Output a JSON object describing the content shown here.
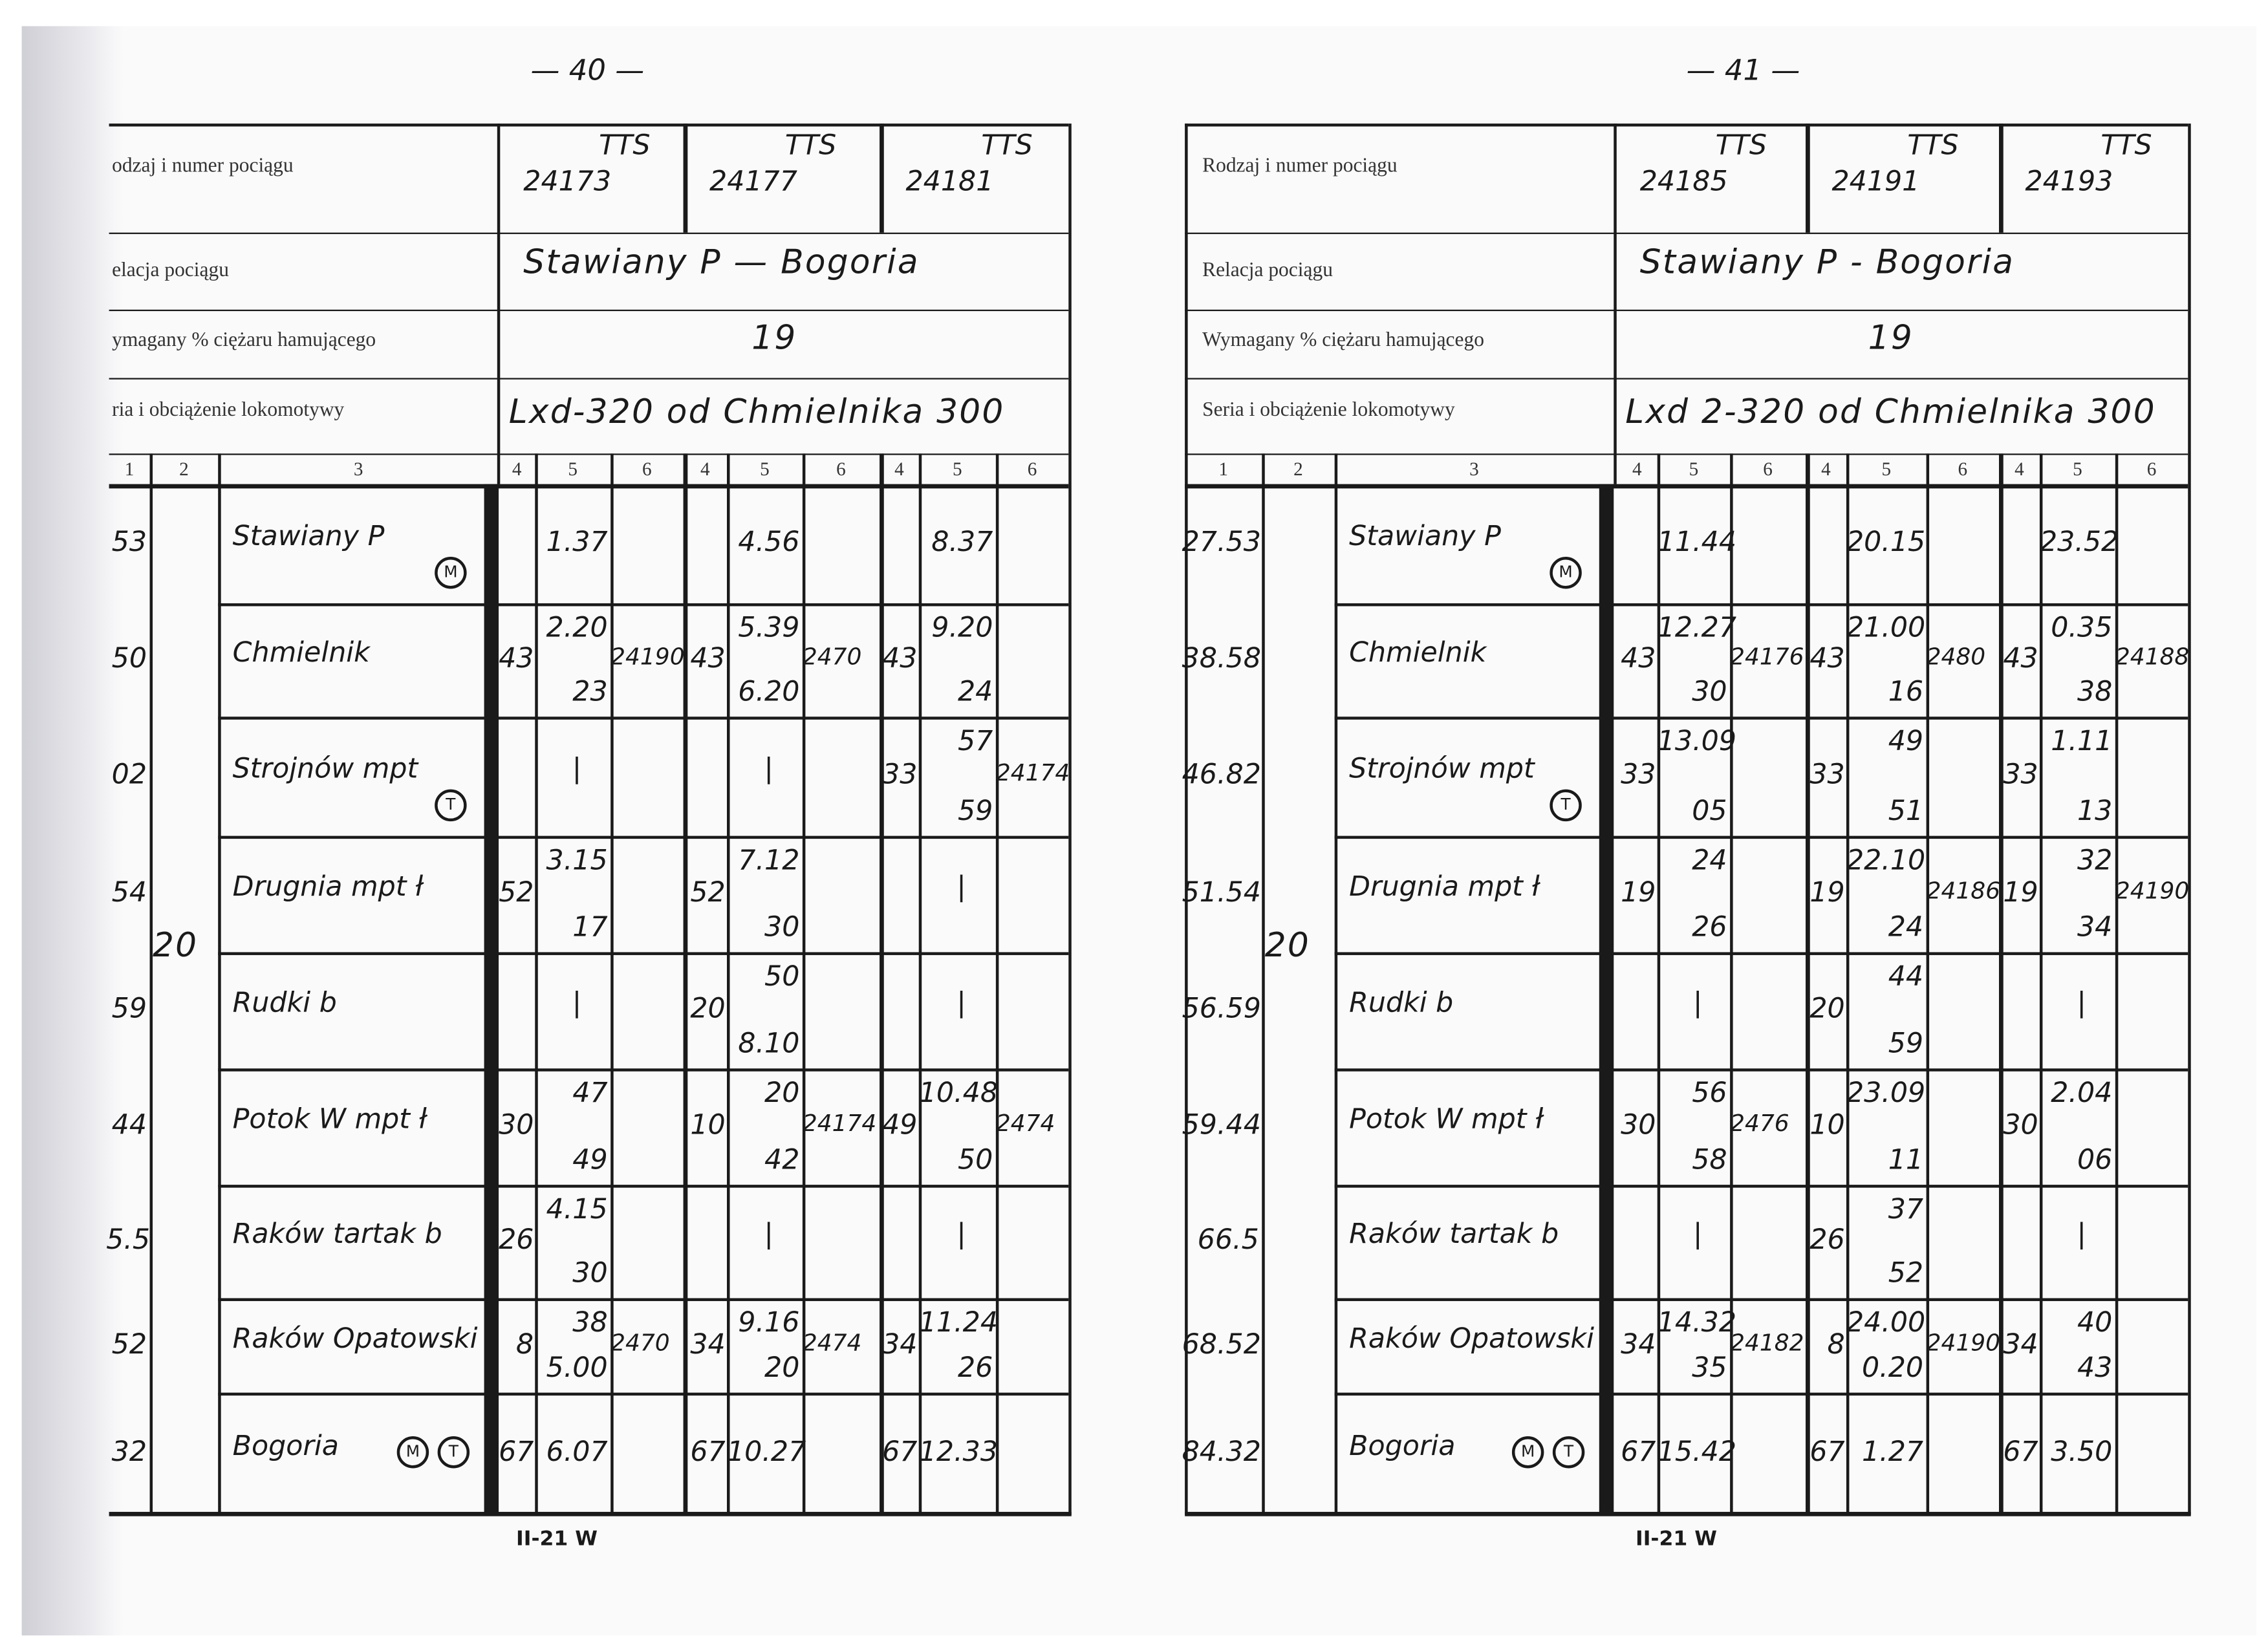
{
  "pages": [
    {
      "page_number": "— 40 —",
      "footer": "II-21 W",
      "header_labels": [
        "odzaj i numer pociągu",
        "elacja pociągu",
        "ymagany % ciężaru hamującego",
        "ria i obciążenie lokomotywy"
      ],
      "trains": [
        {
          "type": "TTS",
          "number": "24173"
        },
        {
          "type": "TTS",
          "number": "24177"
        },
        {
          "type": "TTS",
          "number": "24181"
        }
      ],
      "relation": "Stawiany P — Bogoria",
      "brake_percent": "19",
      "locomotive": "Lxd-320 od Chmielnika 300",
      "column_numbers": [
        "1",
        "2",
        "3",
        "4",
        "5",
        "6",
        "4",
        "5",
        "6",
        "4",
        "5",
        "6"
      ],
      "speed": "20",
      "stations": [
        {
          "km": "53",
          "name": "Stawiany P",
          "symbols": [
            "M"
          ],
          "trains": [
            {
              "c4": "",
              "mid": "1.37"
            },
            {
              "c4": "",
              "mid": "4.56"
            },
            {
              "c4": "",
              "mid": "8.37"
            }
          ]
        },
        {
          "km": "50",
          "name": "Chmielnik",
          "symbols": [],
          "trains": [
            {
              "c4": "43",
              "top": "2.20",
              "bot": "23",
              "c6": "24190"
            },
            {
              "c4": "43",
              "top": "5.39",
              "bot": "6.20",
              "c6": "2470"
            },
            {
              "c4": "43",
              "top": "9.20",
              "bot": "24"
            }
          ]
        },
        {
          "km": "02",
          "name": "Strojnów mpt",
          "symbols": [
            "T"
          ],
          "trains": [
            {
              "mid": "|"
            },
            {
              "mid": "|"
            },
            {
              "c4": "33",
              "top": "57",
              "bot": "59",
              "c6": "24174"
            }
          ]
        },
        {
          "km": "54",
          "name": "Drugnia mpt ł",
          "symbols": [],
          "trains": [
            {
              "c4": "52",
              "top": "3.15",
              "bot": "17"
            },
            {
              "c4": "52",
              "top": "7.12",
              "bot": "30"
            },
            {
              "mid": "|"
            }
          ]
        },
        {
          "km": "59",
          "name": "Rudki b",
          "symbols": [],
          "trains": [
            {
              "mid": "|"
            },
            {
              "c4": "20",
              "top": "50",
              "bot": "8.10"
            },
            {
              "mid": "|"
            }
          ]
        },
        {
          "km": "44",
          "name": "Potok W mpt ł",
          "symbols": [],
          "trains": [
            {
              "c4": "30",
              "top": "47",
              "bot": "49"
            },
            {
              "c4": "10",
              "top": "20",
              "bot": "42",
              "c6": "24174"
            },
            {
              "c4": "49",
              "top": "10.48",
              "bot": "50",
              "c6": "2474"
            }
          ]
        },
        {
          "km": "5.5",
          "name": "Raków tartak b",
          "symbols": [],
          "trains": [
            {
              "c4": "26",
              "top": "4.15",
              "bot": "30"
            },
            {
              "mid": "|"
            },
            {
              "mid": "|"
            }
          ]
        },
        {
          "km": "52",
          "name": "Raków Opatowski",
          "symbols": [],
          "trains": [
            {
              "c4": "8",
              "top": "38",
              "bot": "5.00",
              "c6": "2470"
            },
            {
              "c4": "34",
              "top": "9.16",
              "bot": "20",
              "c6": "2474"
            },
            {
              "c4": "34",
              "top": "11.24",
              "bot": "26"
            }
          ]
        },
        {
          "km": "32",
          "name": "Bogoria",
          "symbols": [
            "M",
            "T"
          ],
          "trains": [
            {
              "c4": "67",
              "mid": "6.07"
            },
            {
              "c4": "67",
              "mid": "10.27"
            },
            {
              "c4": "67",
              "mid": "12.33"
            }
          ]
        }
      ]
    },
    {
      "page_number": "— 41 —",
      "footer": "II-21 W",
      "header_labels": [
        "Rodzaj i numer pociągu",
        "Relacja pociągu",
        "Wymagany % ciężaru hamującego",
        "Seria i obciążenie lokomotywy"
      ],
      "trains": [
        {
          "type": "TTS",
          "number": "24185"
        },
        {
          "type": "TTS",
          "number": "24191"
        },
        {
          "type": "TTS",
          "number": "24193"
        }
      ],
      "relation": "Stawiany P - Bogoria",
      "brake_percent": "19",
      "locomotive": "Lxd 2-320 od Chmielnika 300",
      "column_numbers": [
        "1",
        "2",
        "3",
        "4",
        "5",
        "6",
        "4",
        "5",
        "6",
        "4",
        "5",
        "6"
      ],
      "speed": "20",
      "stations": [
        {
          "km": "27.53",
          "name": "Stawiany P",
          "symbols": [
            "M"
          ],
          "trains": [
            {
              "mid": "11.44"
            },
            {
              "mid": "20.15"
            },
            {
              "mid": "23.52"
            }
          ]
        },
        {
          "km": "38.58",
          "name": "Chmielnik",
          "symbols": [],
          "trains": [
            {
              "c4": "43",
              "top": "12.27",
              "bot": "30",
              "c6": "24176"
            },
            {
              "c4": "43",
              "top": "21.00",
              "bot": "16",
              "c6": "2480"
            },
            {
              "c4": "43",
              "top": "0.35",
              "bot": "38",
              "c6": "24188"
            }
          ]
        },
        {
          "km": "46.82",
          "name": "Strojnów mpt",
          "symbols": [
            "T"
          ],
          "trains": [
            {
              "c4": "33",
              "top": "13.09",
              "bot": "05"
            },
            {
              "c4": "33",
              "top": "49",
              "bot": "51"
            },
            {
              "c4": "33",
              "top": "1.11",
              "bot": "13"
            }
          ]
        },
        {
          "km": "51.54",
          "name": "Drugnia mpt ł",
          "symbols": [],
          "trains": [
            {
              "c4": "19",
              "top": "24",
              "bot": "26"
            },
            {
              "c4": "19",
              "top": "22.10",
              "bot": "24",
              "c6": "24186"
            },
            {
              "c4": "19",
              "top": "32",
              "bot": "34",
              "c6": "24190"
            }
          ]
        },
        {
          "km": "56.59",
          "name": "Rudki b",
          "symbols": [],
          "trains": [
            {
              "mid": "|"
            },
            {
              "c4": "20",
              "top": "44",
              "bot": "59"
            },
            {
              "mid": "|"
            }
          ]
        },
        {
          "km": "59.44",
          "name": "Potok W mpt ł",
          "symbols": [],
          "trains": [
            {
              "c4": "30",
              "top": "56",
              "bot": "58",
              "c6": "2476"
            },
            {
              "c4": "10",
              "top": "23.09",
              "bot": "11"
            },
            {
              "c4": "30",
              "top": "2.04",
              "bot": "06"
            }
          ]
        },
        {
          "km": "66.5",
          "name": "Raków tartak b",
          "symbols": [],
          "trains": [
            {
              "mid": "|"
            },
            {
              "c4": "26",
              "top": "37",
              "bot": "52"
            },
            {
              "mid": "|"
            }
          ]
        },
        {
          "km": "68.52",
          "name": "Raków Opatowski",
          "symbols": [],
          "trains": [
            {
              "c4": "34",
              "top": "14.32",
              "bot": "35",
              "c6": "24182"
            },
            {
              "c4": "8",
              "top": "24.00",
              "bot": "0.20",
              "c6": "24190"
            },
            {
              "c4": "34",
              "top": "40",
              "bot": "43"
            }
          ]
        },
        {
          "km": "84.32",
          "name": "Bogoria",
          "symbols": [
            "M",
            "T"
          ],
          "trains": [
            {
              "c4": "67",
              "mid": "15.42"
            },
            {
              "c4": "67",
              "mid": "1.27"
            },
            {
              "c4": "67",
              "mid": "3.50"
            }
          ]
        }
      ]
    }
  ]
}
